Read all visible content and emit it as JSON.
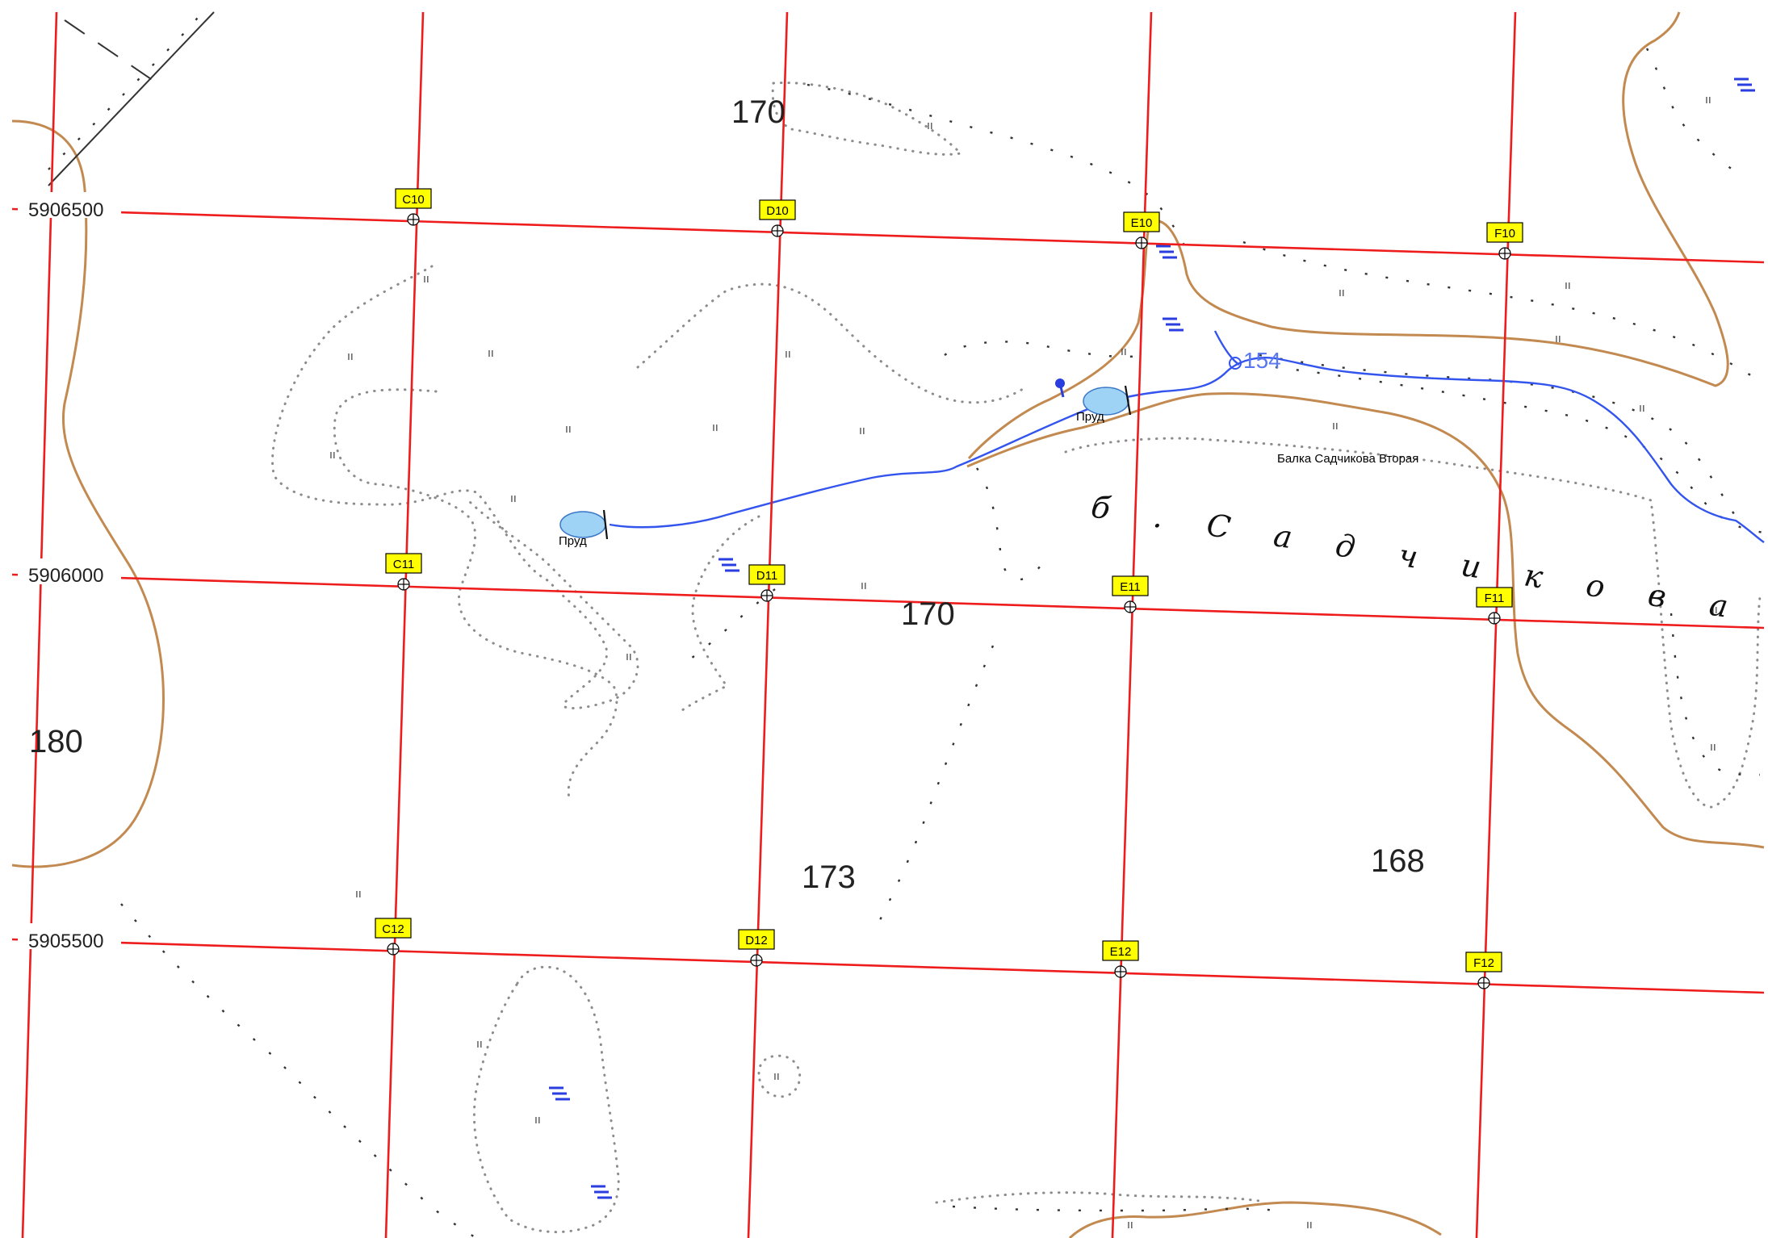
{
  "map": {
    "northing_labels": [
      "5906500",
      "5906000",
      "5905500"
    ],
    "cells": [
      "C10",
      "D10",
      "E10",
      "F10",
      "C11",
      "D11",
      "E11",
      "F11",
      "C12",
      "D12",
      "E12",
      "F12"
    ],
    "elevations": [
      "170",
      "170",
      "180",
      "173",
      "168",
      "154"
    ],
    "ponds": [
      "Пруд",
      "Пруд"
    ],
    "ravine_label": "Балка Садчикова Вторая",
    "ravine_lettering": "б . С а д ч и к о в а",
    "colors": {
      "grid": "#ee1c1c",
      "contour": "#c28a50",
      "water": "#3355ee",
      "pond_fill": "#9fd3f5",
      "cell_marker": "#ffff00"
    }
  }
}
